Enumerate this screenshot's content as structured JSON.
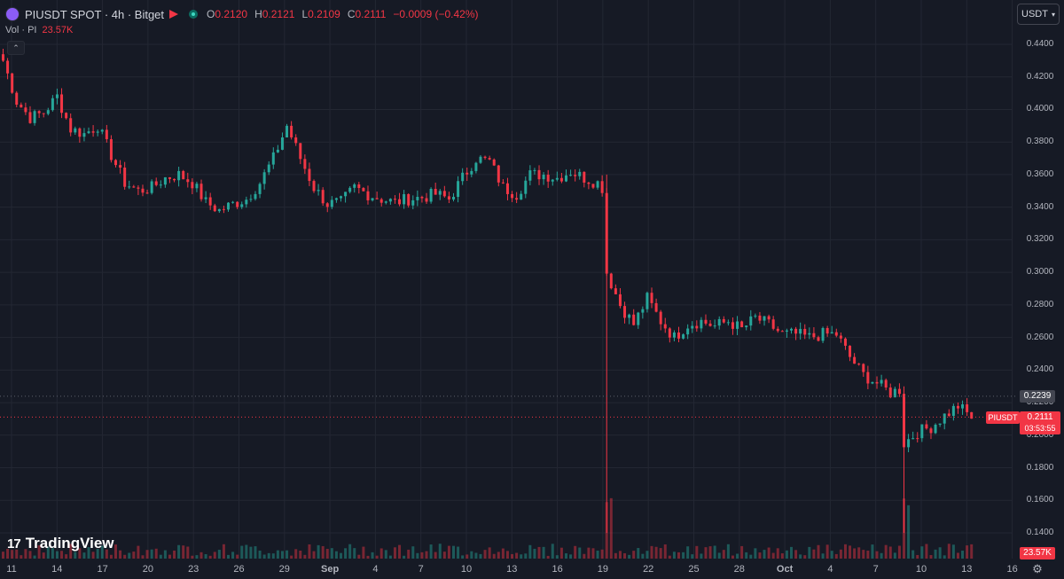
{
  "header": {
    "symbol": "PIUSDT SPOT · 4h · Bitget",
    "ohlc": [
      {
        "key": "O",
        "value": "0.2120"
      },
      {
        "key": "H",
        "value": "0.2121"
      },
      {
        "key": "L",
        "value": "0.2109"
      },
      {
        "key": "C",
        "value": "0.2111"
      }
    ],
    "change": "−0.0009 (−0.42%)",
    "logo_icon": "pi-coin-icon",
    "market_icon": "flag-icon"
  },
  "volume_legend": {
    "label": "Vol · PI",
    "value": "23.57K"
  },
  "currency_button": {
    "label": "USDT",
    "icon": "chevron-down-icon"
  },
  "branding": {
    "name": "TradingView",
    "mark": "17"
  },
  "price_axis": {
    "labels": [
      "0.4400",
      "0.4200",
      "0.4000",
      "0.3800",
      "0.3600",
      "0.3400",
      "0.3200",
      "0.3000",
      "0.2800",
      "0.2600",
      "0.2400",
      "0.2200",
      "0.2000",
      "0.1800",
      "0.1600",
      "0.1400"
    ]
  },
  "time_axis": {
    "labels": [
      "11",
      "14",
      "17",
      "20",
      "23",
      "26",
      "29",
      "Sep",
      "4",
      "7",
      "10",
      "13",
      "16",
      "19",
      "22",
      "25",
      "28",
      "Oct",
      "4",
      "7",
      "10",
      "13",
      "16"
    ]
  },
  "tags": {
    "high_marker": "0.2239",
    "symbol_tag": "PIUSDT",
    "last_price": "0.2111",
    "countdown": "03:53:55",
    "volume": "23.57K"
  },
  "colors": {
    "up": "#26a69a",
    "down": "#f23645",
    "background": "#161a25",
    "grid": "#232733"
  },
  "chart_data": {
    "type": "candlestick",
    "symbol": "PIUSDT",
    "exchange": "Bitget",
    "timeframe": "4h",
    "ylim": [
      0.13,
      0.445
    ],
    "grid": true,
    "x_labels": [
      "11",
      "14",
      "17",
      "20",
      "23",
      "26",
      "29",
      "Sep",
      "4",
      "7",
      "10",
      "13",
      "16",
      "19",
      "22",
      "25",
      "28",
      "Oct",
      "4",
      "7",
      "10",
      "13",
      "16"
    ],
    "y_ticks": [
      0.44,
      0.42,
      0.4,
      0.38,
      0.36,
      0.34,
      0.32,
      0.3,
      0.28,
      0.26,
      0.24,
      0.22,
      0.2,
      0.18,
      0.16,
      0.14
    ],
    "last_price": 0.2111,
    "marked_price": 0.2239,
    "close_path": [
      [
        0,
        0.43
      ],
      [
        3,
        0.405
      ],
      [
        6,
        0.395
      ],
      [
        9,
        0.398
      ],
      [
        12,
        0.408
      ],
      [
        15,
        0.388
      ],
      [
        18,
        0.385
      ],
      [
        21,
        0.39
      ],
      [
        24,
        0.372
      ],
      [
        27,
        0.355
      ],
      [
        30,
        0.35
      ],
      [
        33,
        0.352
      ],
      [
        36,
        0.358
      ],
      [
        39,
        0.36
      ],
      [
        42,
        0.355
      ],
      [
        45,
        0.343
      ],
      [
        48,
        0.338
      ],
      [
        51,
        0.342
      ],
      [
        54,
        0.345
      ],
      [
        57,
        0.355
      ],
      [
        60,
        0.37
      ],
      [
        63,
        0.39
      ],
      [
        66,
        0.37
      ],
      [
        69,
        0.352
      ],
      [
        72,
        0.342
      ],
      [
        75,
        0.343
      ],
      [
        78,
        0.352
      ],
      [
        81,
        0.348
      ],
      [
        84,
        0.345
      ],
      [
        87,
        0.343
      ],
      [
        90,
        0.345
      ],
      [
        93,
        0.346
      ],
      [
        96,
        0.348
      ],
      [
        99,
        0.345
      ],
      [
        102,
        0.358
      ],
      [
        105,
        0.37
      ],
      [
        108,
        0.368
      ],
      [
        111,
        0.352
      ],
      [
        114,
        0.348
      ],
      [
        117,
        0.36
      ],
      [
        120,
        0.36
      ],
      [
        123,
        0.358
      ],
      [
        126,
        0.362
      ],
      [
        129,
        0.358
      ],
      [
        132,
        0.355
      ],
      [
        133,
        0.352
      ],
      [
        134,
        0.3
      ],
      [
        137,
        0.28
      ],
      [
        140,
        0.268
      ],
      [
        143,
        0.284
      ],
      [
        146,
        0.27
      ],
      [
        149,
        0.26
      ],
      [
        152,
        0.268
      ],
      [
        155,
        0.27
      ],
      [
        158,
        0.267
      ],
      [
        161,
        0.27
      ],
      [
        164,
        0.265
      ],
      [
        167,
        0.272
      ],
      [
        170,
        0.268
      ],
      [
        173,
        0.262
      ],
      [
        176,
        0.262
      ],
      [
        179,
        0.26
      ],
      [
        182,
        0.262
      ],
      [
        185,
        0.262
      ],
      [
        188,
        0.248
      ],
      [
        191,
        0.237
      ],
      [
        194,
        0.232
      ],
      [
        197,
        0.226
      ],
      [
        199,
        0.228
      ],
      [
        200,
        0.195
      ],
      [
        203,
        0.202
      ],
      [
        206,
        0.205
      ],
      [
        209,
        0.212
      ],
      [
        212,
        0.218
      ],
      [
        215,
        0.211
      ]
    ],
    "volume_note": "Vol · PI 23.57K (last bar)"
  }
}
